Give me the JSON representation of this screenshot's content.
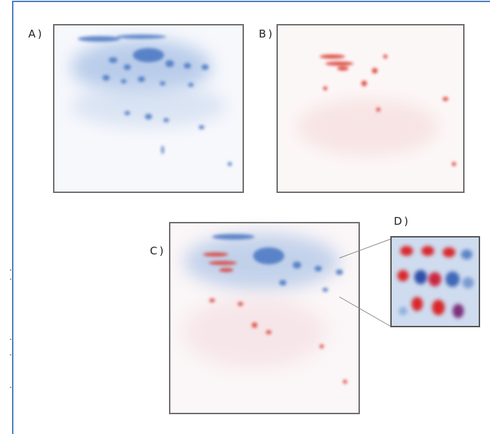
{
  "panels": [
    {
      "label": "A)"
    },
    {
      "label": "B)"
    },
    {
      "label": "C)"
    },
    {
      "label": "D)"
    }
  ]
}
